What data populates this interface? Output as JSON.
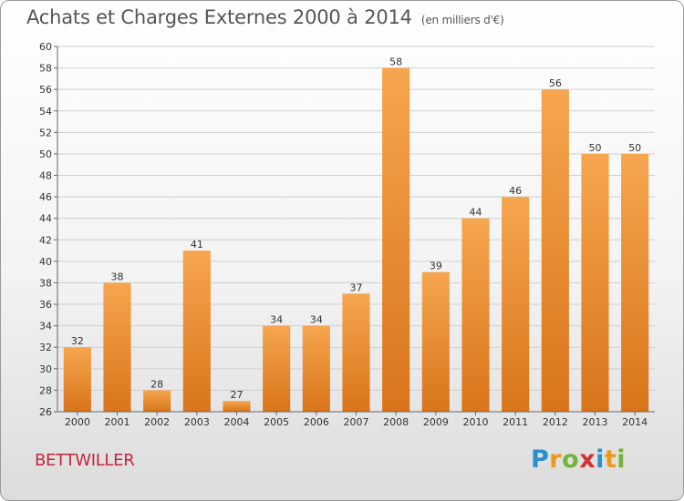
{
  "title": "Achats et Charges Externes 2000 à 2014",
  "subtitle": "(en milliers d'€)",
  "commune": "BETTWILLER",
  "logo_text": "Proxiti",
  "colors": {
    "bar_light": "#f6a64f",
    "bar_dark": "#d9741a",
    "grid": "#cfcfcf",
    "title": "#555555",
    "commune": "#c8243c"
  },
  "chart_data": {
    "type": "bar",
    "categories": [
      "2000",
      "2001",
      "2002",
      "2003",
      "2004",
      "2005",
      "2006",
      "2007",
      "2008",
      "2009",
      "2010",
      "2011",
      "2012",
      "2013",
      "2014"
    ],
    "values": [
      32,
      38,
      28,
      41,
      27,
      34,
      34,
      37,
      58,
      39,
      44,
      46,
      56,
      50,
      50
    ],
    "title": "Achats et Charges Externes 2000 à 2014",
    "subtitle": "(en milliers d'€)",
    "xlabel": "",
    "ylabel": "",
    "ylim": [
      26,
      60
    ],
    "ytick_step": 2,
    "grid": true,
    "data_labels": true
  }
}
